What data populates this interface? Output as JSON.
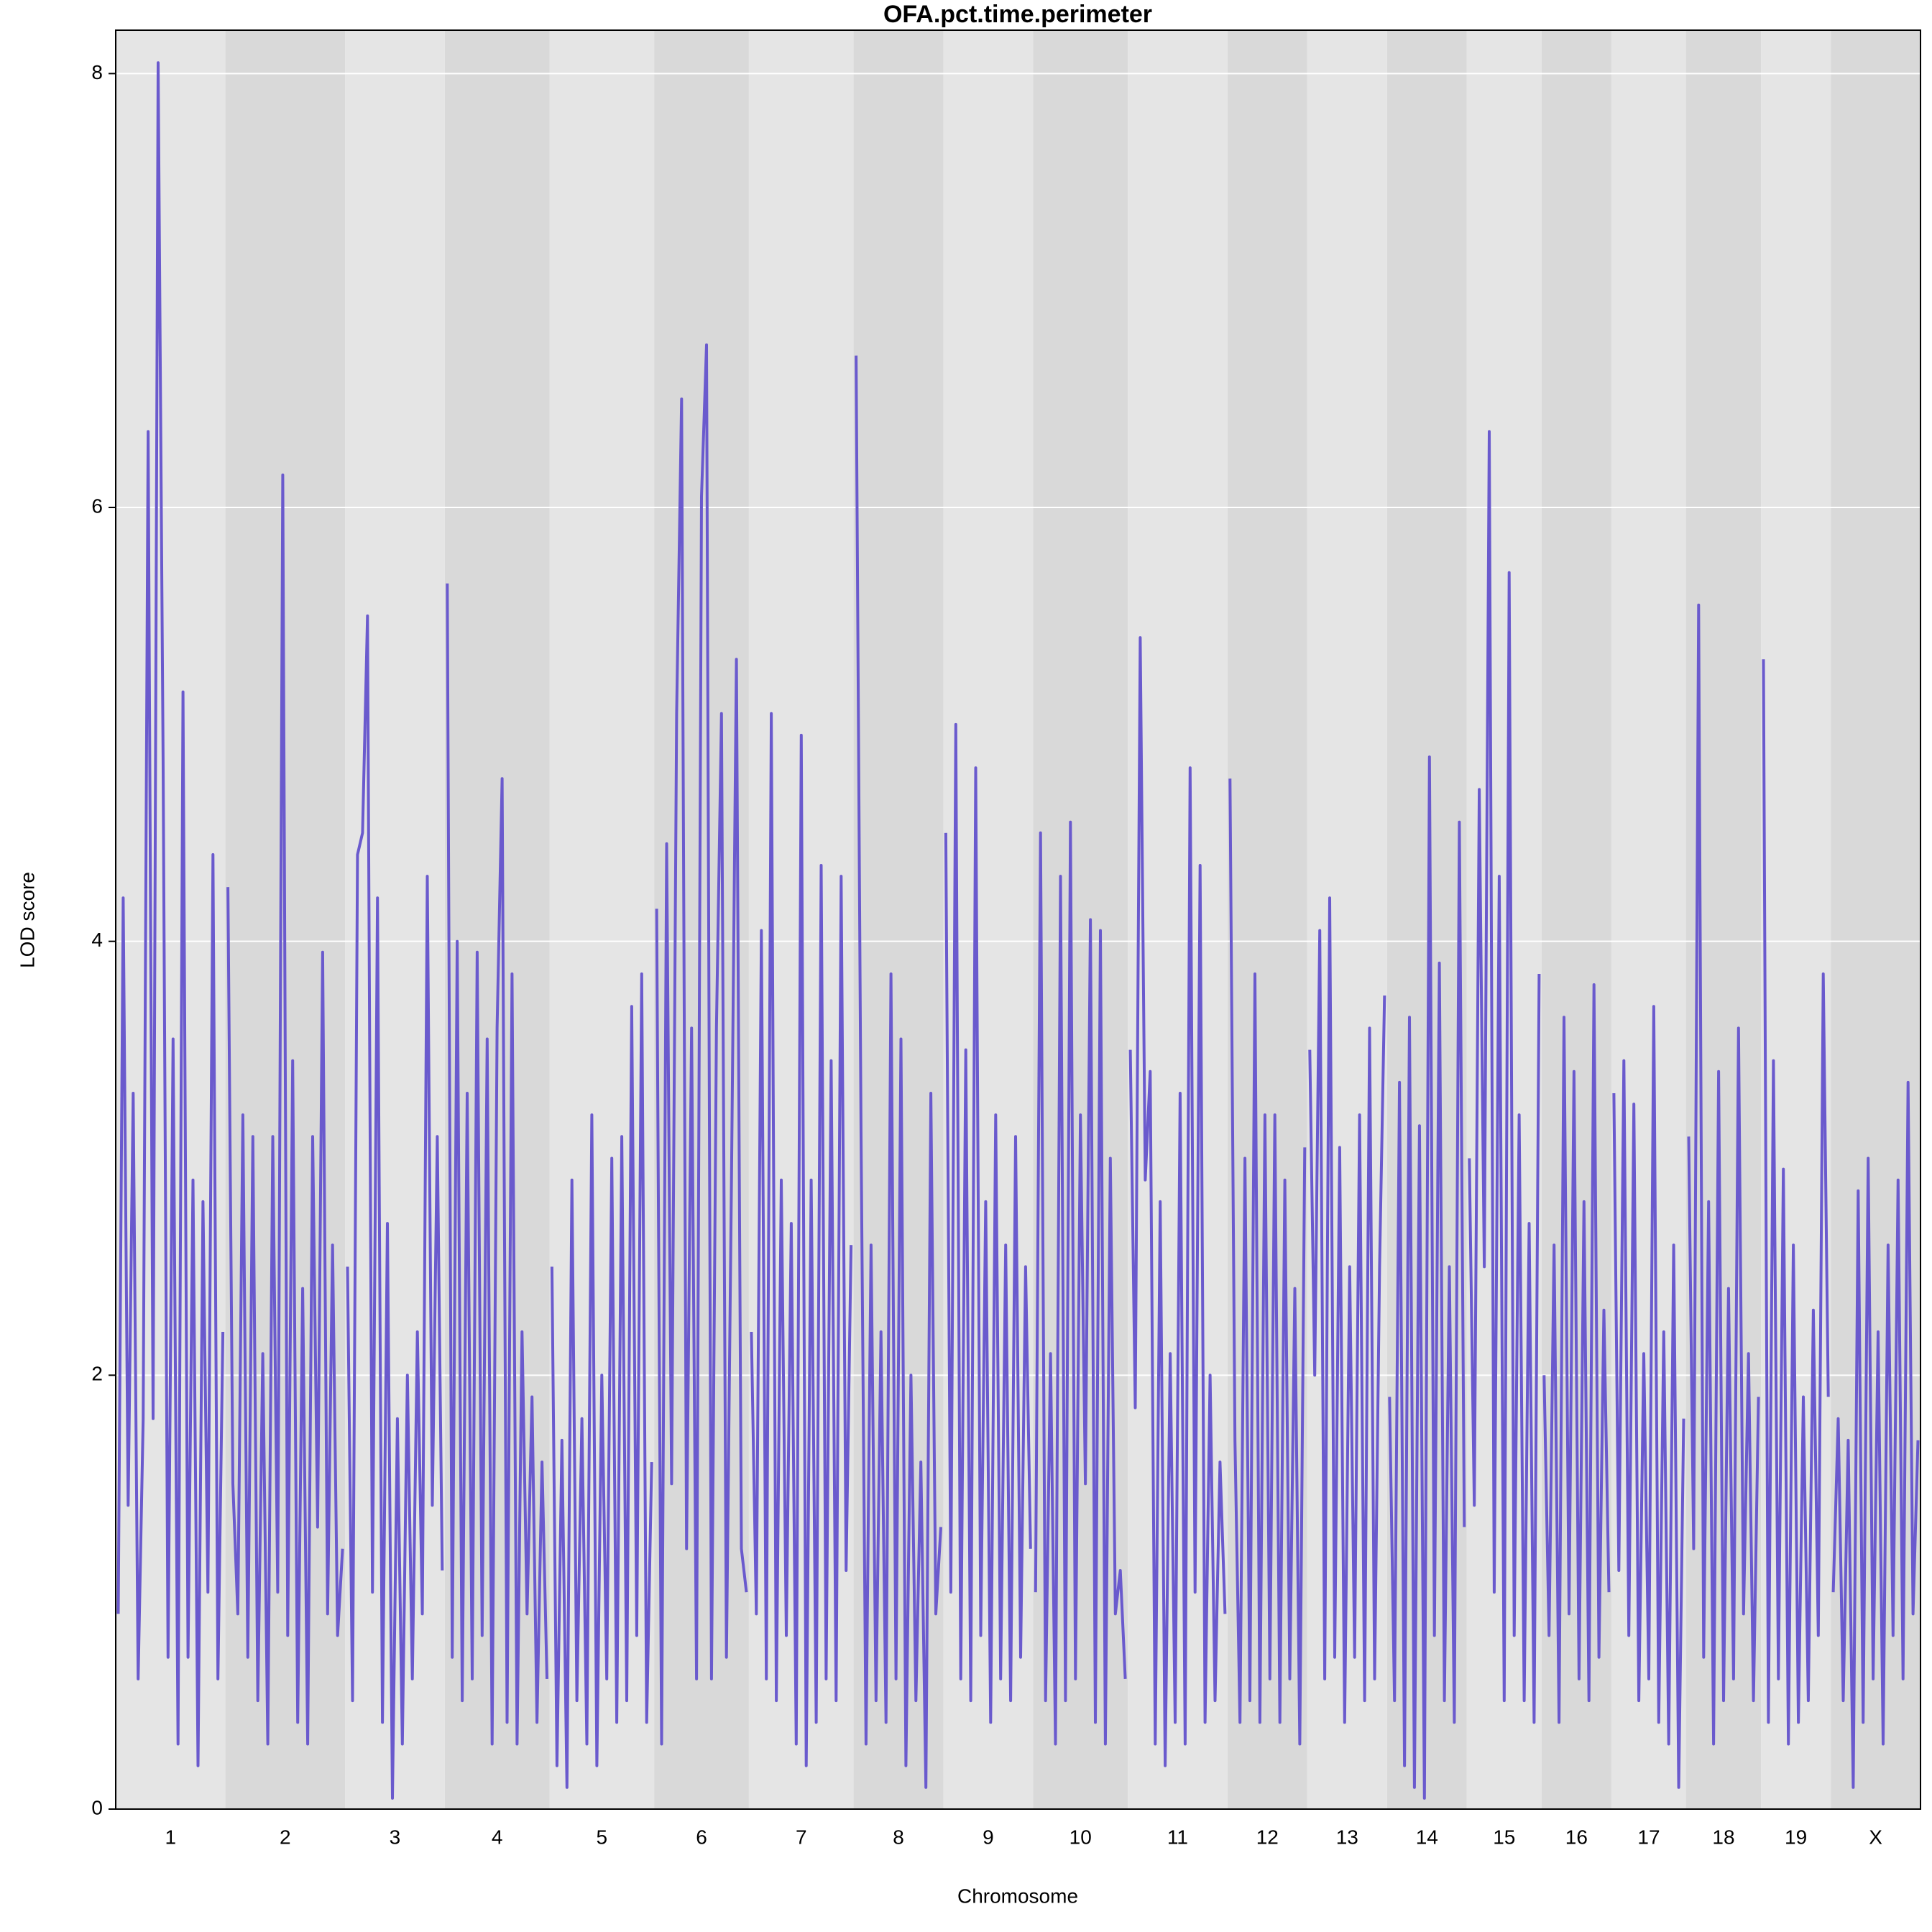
{
  "chart_data": {
    "type": "line",
    "title": "OFA.pct.time.perimeter",
    "xlabel": "Chromosome",
    "ylabel": "LOD score",
    "ylim": [
      0,
      8.2
    ],
    "yticks": [
      0,
      2,
      4,
      6,
      8
    ],
    "grid": true,
    "color": "#6a5acd",
    "band_colors": [
      "#e5e5e5",
      "#d9d9d9"
    ],
    "chromosomes": [
      {
        "name": "1",
        "values": [
          0.9,
          4.2,
          1.4,
          3.3,
          0.6,
          1.8,
          6.35,
          1.8,
          8.05,
          4.85,
          0.7,
          3.55,
          0.3,
          5.15,
          0.7,
          2.9,
          0.2,
          2.8,
          1.0,
          4.4,
          0.6,
          2.2
        ]
      },
      {
        "name": "2",
        "values": [
          4.25,
          1.5,
          0.9,
          3.2,
          0.7,
          3.1,
          0.5,
          2.1,
          0.3,
          3.1,
          1.0,
          6.15,
          0.8,
          3.45,
          0.4,
          2.4,
          0.3,
          3.1,
          1.3,
          3.95,
          0.9,
          2.6,
          0.8,
          1.2
        ]
      },
      {
        "name": "3",
        "values": [
          2.5,
          0.5,
          4.4,
          4.5,
          5.5,
          1.0,
          4.2,
          0.4,
          2.7,
          0.05,
          1.8,
          0.3,
          2.0,
          0.6,
          2.2,
          0.9,
          4.3,
          1.4,
          3.1,
          1.1
        ]
      },
      {
        "name": "4",
        "values": [
          5.65,
          0.7,
          4.0,
          0.5,
          3.3,
          0.6,
          3.95,
          0.8,
          3.55,
          0.3,
          3.6,
          4.75,
          0.4,
          3.85,
          0.3,
          2.2,
          0.9,
          1.9,
          0.4,
          1.6,
          0.6
        ]
      },
      {
        "name": "5",
        "values": [
          2.5,
          0.2,
          1.7,
          0.1,
          2.9,
          0.5,
          1.8,
          0.3,
          3.2,
          0.2,
          2.0,
          0.6,
          3.0,
          0.4,
          3.1,
          0.5,
          3.7,
          0.8,
          3.85,
          0.4,
          1.6
        ]
      },
      {
        "name": "6",
        "values": [
          4.15,
          0.3,
          4.45,
          1.5,
          5.05,
          6.5,
          1.2,
          3.6,
          0.6,
          6.05,
          6.75,
          0.6,
          3.6,
          5.05,
          0.7,
          2.9,
          5.3,
          1.2,
          1.0
        ]
      },
      {
        "name": "7",
        "values": [
          2.2,
          0.9,
          4.05,
          0.6,
          5.05,
          0.5,
          2.9,
          0.8,
          2.7,
          0.3,
          4.95,
          0.2,
          2.9,
          0.4,
          4.35,
          0.6,
          3.45,
          0.5,
          4.3,
          1.1,
          2.6
        ]
      },
      {
        "name": "8",
        "values": [
          6.7,
          3.1,
          0.3,
          2.6,
          0.5,
          2.2,
          0.4,
          3.85,
          0.6,
          3.55,
          0.2,
          2.0,
          0.5,
          1.6,
          0.1,
          3.3,
          0.9,
          1.3
        ]
      },
      {
        "name": "9",
        "values": [
          4.5,
          1.0,
          5.0,
          0.6,
          3.5,
          0.5,
          4.8,
          0.8,
          2.8,
          0.4,
          3.2,
          0.6,
          2.6,
          0.5,
          3.1,
          0.7,
          2.5,
          1.2
        ]
      },
      {
        "name": "10",
        "values": [
          1.0,
          4.5,
          0.5,
          2.1,
          0.3,
          4.3,
          0.5,
          4.55,
          0.6,
          3.2,
          1.5,
          4.1,
          0.4,
          4.05,
          0.3,
          3.0,
          0.9,
          1.1,
          0.6
        ]
      },
      {
        "name": "11",
        "values": [
          3.5,
          1.85,
          5.4,
          2.9,
          3.4,
          0.3,
          2.8,
          0.2,
          2.1,
          0.4,
          3.3,
          0.3,
          4.8,
          1.0,
          4.35,
          0.4,
          2.0,
          0.5,
          1.6,
          0.9
        ]
      },
      {
        "name": "12",
        "values": [
          4.75,
          1.7,
          0.4,
          3.0,
          0.5,
          3.85,
          0.4,
          3.2,
          0.6,
          3.2,
          0.4,
          2.9,
          0.6,
          2.4,
          0.3,
          3.05
        ]
      },
      {
        "name": "13",
        "values": [
          3.5,
          2.0,
          4.05,
          0.6,
          4.2,
          0.7,
          3.05,
          0.4,
          2.5,
          0.7,
          3.2,
          0.5,
          3.6,
          0.6,
          2.5,
          3.75
        ]
      },
      {
        "name": "14",
        "values": [
          1.9,
          0.5,
          3.35,
          0.2,
          3.65,
          0.1,
          3.15,
          0.05,
          4.85,
          0.8,
          3.9,
          0.5,
          2.5,
          0.4,
          4.55,
          1.3
        ]
      },
      {
        "name": "15",
        "values": [
          3.0,
          1.4,
          4.7,
          2.5,
          6.35,
          1.0,
          4.3,
          0.5,
          5.7,
          0.8,
          3.2,
          0.5,
          2.7,
          0.4,
          3.85
        ]
      },
      {
        "name": "16",
        "values": [
          2.0,
          0.8,
          2.6,
          0.4,
          3.65,
          0.9,
          3.4,
          0.6,
          2.8,
          0.5,
          3.8,
          0.7,
          2.3,
          1.0
        ]
      },
      {
        "name": "17",
        "values": [
          3.3,
          1.1,
          3.45,
          0.8,
          3.25,
          0.5,
          2.1,
          0.6,
          3.7,
          0.4,
          2.2,
          0.3,
          2.6,
          0.1,
          1.8
        ]
      },
      {
        "name": "18",
        "values": [
          3.1,
          1.2,
          5.55,
          0.7,
          2.8,
          0.3,
          3.4,
          0.5,
          2.4,
          0.6,
          3.6,
          0.9,
          2.1,
          0.5,
          1.9
        ]
      },
      {
        "name": "19",
        "values": [
          5.3,
          0.4,
          3.45,
          0.6,
          2.95,
          0.3,
          2.6,
          0.4,
          1.9,
          0.5,
          2.3,
          0.8,
          3.85,
          1.9
        ]
      },
      {
        "name": "X",
        "values": [
          1.0,
          1.8,
          0.5,
          1.7,
          0.1,
          2.85,
          0.4,
          3.0,
          0.6,
          2.2,
          0.3,
          2.6,
          0.8,
          2.9,
          0.6,
          3.35,
          0.9,
          1.7
        ]
      }
    ]
  }
}
